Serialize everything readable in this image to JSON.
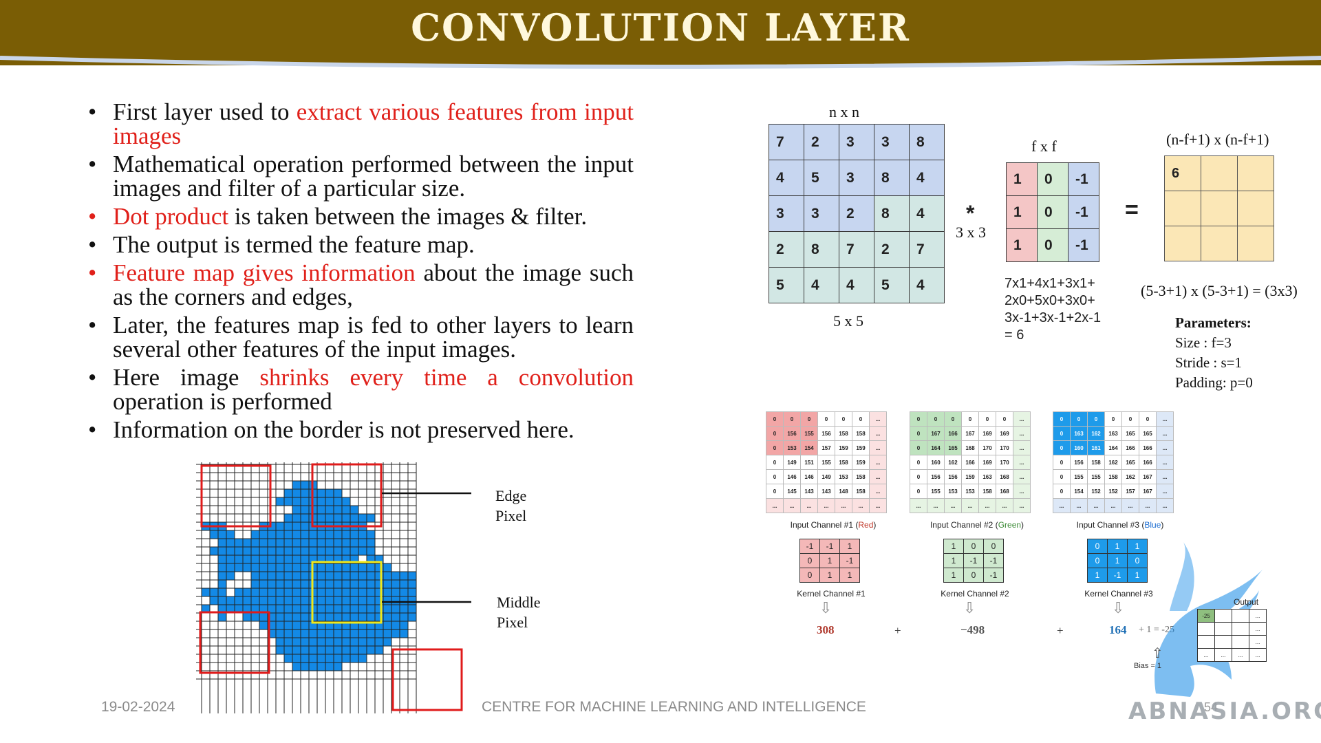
{
  "title": "CONVOLUTION LAYER",
  "bullets": [
    {
      "pre": "First layer used to ",
      "red": "extract various features from input images",
      "post": "",
      "red_bullet": false
    },
    {
      "pre": "Mathematical operation performed between the input images and filter of a particular size.",
      "red": "",
      "post": "",
      "red_bullet": false
    },
    {
      "pre": "",
      "red": "Dot product",
      "post": " is taken between the images & filter.",
      "red_bullet": true
    },
    {
      "pre": "The output is termed the feature map.",
      "red": "",
      "post": "",
      "red_bullet": false
    },
    {
      "pre": "",
      "red": "Feature map gives information",
      "post": " about the image such as the corners and edges,",
      "red_bullet": true
    },
    {
      "pre": "Later, the features map is fed to other layers to learn several other features of the input images.",
      "red": "",
      "post": "",
      "red_bullet": false
    },
    {
      "pre": "Here image ",
      "red": "shrinks every time a convolution",
      "post": " operation is performed",
      "red_bullet": false
    },
    {
      "pre": "Information on the border is not preserved here.",
      "red": "",
      "post": "",
      "red_bullet": false
    }
  ],
  "pixel_diagram": {
    "edge_label_1": "Edge",
    "edge_label_2": "Pixel",
    "middle_label_1": "Middle",
    "middle_label_2": "Pixel"
  },
  "conv_example": {
    "input_dim_label": "n x n",
    "input_size_label": "5 x 5",
    "input_matrix": [
      [
        7,
        2,
        3,
        3,
        8
      ],
      [
        4,
        5,
        3,
        8,
        4
      ],
      [
        3,
        3,
        2,
        8,
        4
      ],
      [
        2,
        8,
        7,
        2,
        7
      ],
      [
        5,
        4,
        4,
        5,
        4
      ]
    ],
    "operator": "*",
    "filter_dim_label": "f x f",
    "filter_size_label": "3 x 3",
    "filter_matrix": [
      [
        1,
        0,
        -1
      ],
      [
        1,
        0,
        -1
      ],
      [
        1,
        0,
        -1
      ]
    ],
    "equals": "=",
    "output_dim_label": "(n-f+1) x (n-f+1)",
    "output_matrix": [
      [
        "6",
        "",
        ""
      ],
      [
        "",
        "",
        ""
      ],
      [
        "",
        "",
        ""
      ]
    ],
    "computation_lines": [
      "7x1+4x1+3x1+",
      "2x0+5x0+3x0+",
      "3x-1+3x-1+2x-1",
      "= 6"
    ],
    "output_size_formula": "(5-3+1) x (5-3+1) = (3x3)",
    "parameters_title": "Parameters:",
    "parameters": [
      "Size : f=3",
      "Stride : s=1",
      "Padding: p=0"
    ]
  },
  "channels": [
    {
      "caption_pre": "Input Channel #1 (",
      "caption_color_word": "Red",
      "caption_post": ")",
      "color": "#c0392b",
      "rows": [
        [
          "0",
          "0",
          "0",
          "0",
          "0",
          "0",
          "..."
        ],
        [
          "0",
          "156",
          "155",
          "156",
          "158",
          "158",
          "..."
        ],
        [
          "0",
          "153",
          "154",
          "157",
          "159",
          "159",
          "..."
        ],
        [
          "0",
          "149",
          "151",
          "155",
          "158",
          "159",
          "..."
        ],
        [
          "0",
          "146",
          "146",
          "149",
          "153",
          "158",
          "..."
        ],
        [
          "0",
          "145",
          "143",
          "143",
          "148",
          "158",
          "..."
        ],
        [
          "...",
          "...",
          "...",
          "...",
          "...",
          "...",
          "..."
        ]
      ],
      "kernel_caption": "Kernel Channel #1",
      "kernel": [
        [
          "-1",
          "-1",
          "1"
        ],
        [
          "0",
          "1",
          "-1"
        ],
        [
          "0",
          "1",
          "1"
        ]
      ],
      "result": "308"
    },
    {
      "caption_pre": "Input Channel #2 (",
      "caption_color_word": "Green",
      "caption_post": ")",
      "color": "#3d8b37",
      "rows": [
        [
          "0",
          "0",
          "0",
          "0",
          "0",
          "0",
          "..."
        ],
        [
          "0",
          "167",
          "166",
          "167",
          "169",
          "169",
          "..."
        ],
        [
          "0",
          "164",
          "165",
          "168",
          "170",
          "170",
          "..."
        ],
        [
          "0",
          "160",
          "162",
          "166",
          "169",
          "170",
          "..."
        ],
        [
          "0",
          "156",
          "156",
          "159",
          "163",
          "168",
          "..."
        ],
        [
          "0",
          "155",
          "153",
          "153",
          "158",
          "168",
          "..."
        ],
        [
          "...",
          "...",
          "...",
          "...",
          "...",
          "...",
          "..."
        ]
      ],
      "kernel_caption": "Kernel Channel #2",
      "kernel": [
        [
          "1",
          "0",
          "0"
        ],
        [
          "1",
          "-1",
          "-1"
        ],
        [
          "1",
          "0",
          "-1"
        ]
      ],
      "result": "−498"
    },
    {
      "caption_pre": "Input Channel #3 (",
      "caption_color_word": "Blue",
      "caption_post": ")",
      "color": "#1f6fd1",
      "rows": [
        [
          "0",
          "0",
          "0",
          "0",
          "0",
          "0",
          "..."
        ],
        [
          "0",
          "163",
          "162",
          "163",
          "165",
          "165",
          "..."
        ],
        [
          "0",
          "160",
          "161",
          "164",
          "166",
          "166",
          "..."
        ],
        [
          "0",
          "156",
          "158",
          "162",
          "165",
          "166",
          "..."
        ],
        [
          "0",
          "155",
          "155",
          "158",
          "162",
          "167",
          "..."
        ],
        [
          "0",
          "154",
          "152",
          "152",
          "157",
          "167",
          "..."
        ],
        [
          "...",
          "...",
          "...",
          "...",
          "...",
          "...",
          "..."
        ]
      ],
      "kernel_caption": "Kernel Channel #3",
      "kernel": [
        [
          "0",
          "1",
          "1"
        ],
        [
          "0",
          "1",
          "0"
        ],
        [
          "1",
          "-1",
          "1"
        ]
      ],
      "result": "164"
    }
  ],
  "plus_sign": "+",
  "sum_fragment": "+ 1 = -25",
  "bias_label": "Bias = 1",
  "output_label": "Output",
  "output_first": "-25",
  "output_ellipsis": "...",
  "footer": {
    "date": "19-02-2024",
    "centre": "CENTRE FOR MACHINE LEARNING AND INTELLIGENCE",
    "page": "54"
  },
  "watermark": "ABNASIA.ORG",
  "colors": {
    "header": "#7a5d05",
    "accent_red": "#e0201a",
    "pixel_blue": "#1389e6"
  }
}
